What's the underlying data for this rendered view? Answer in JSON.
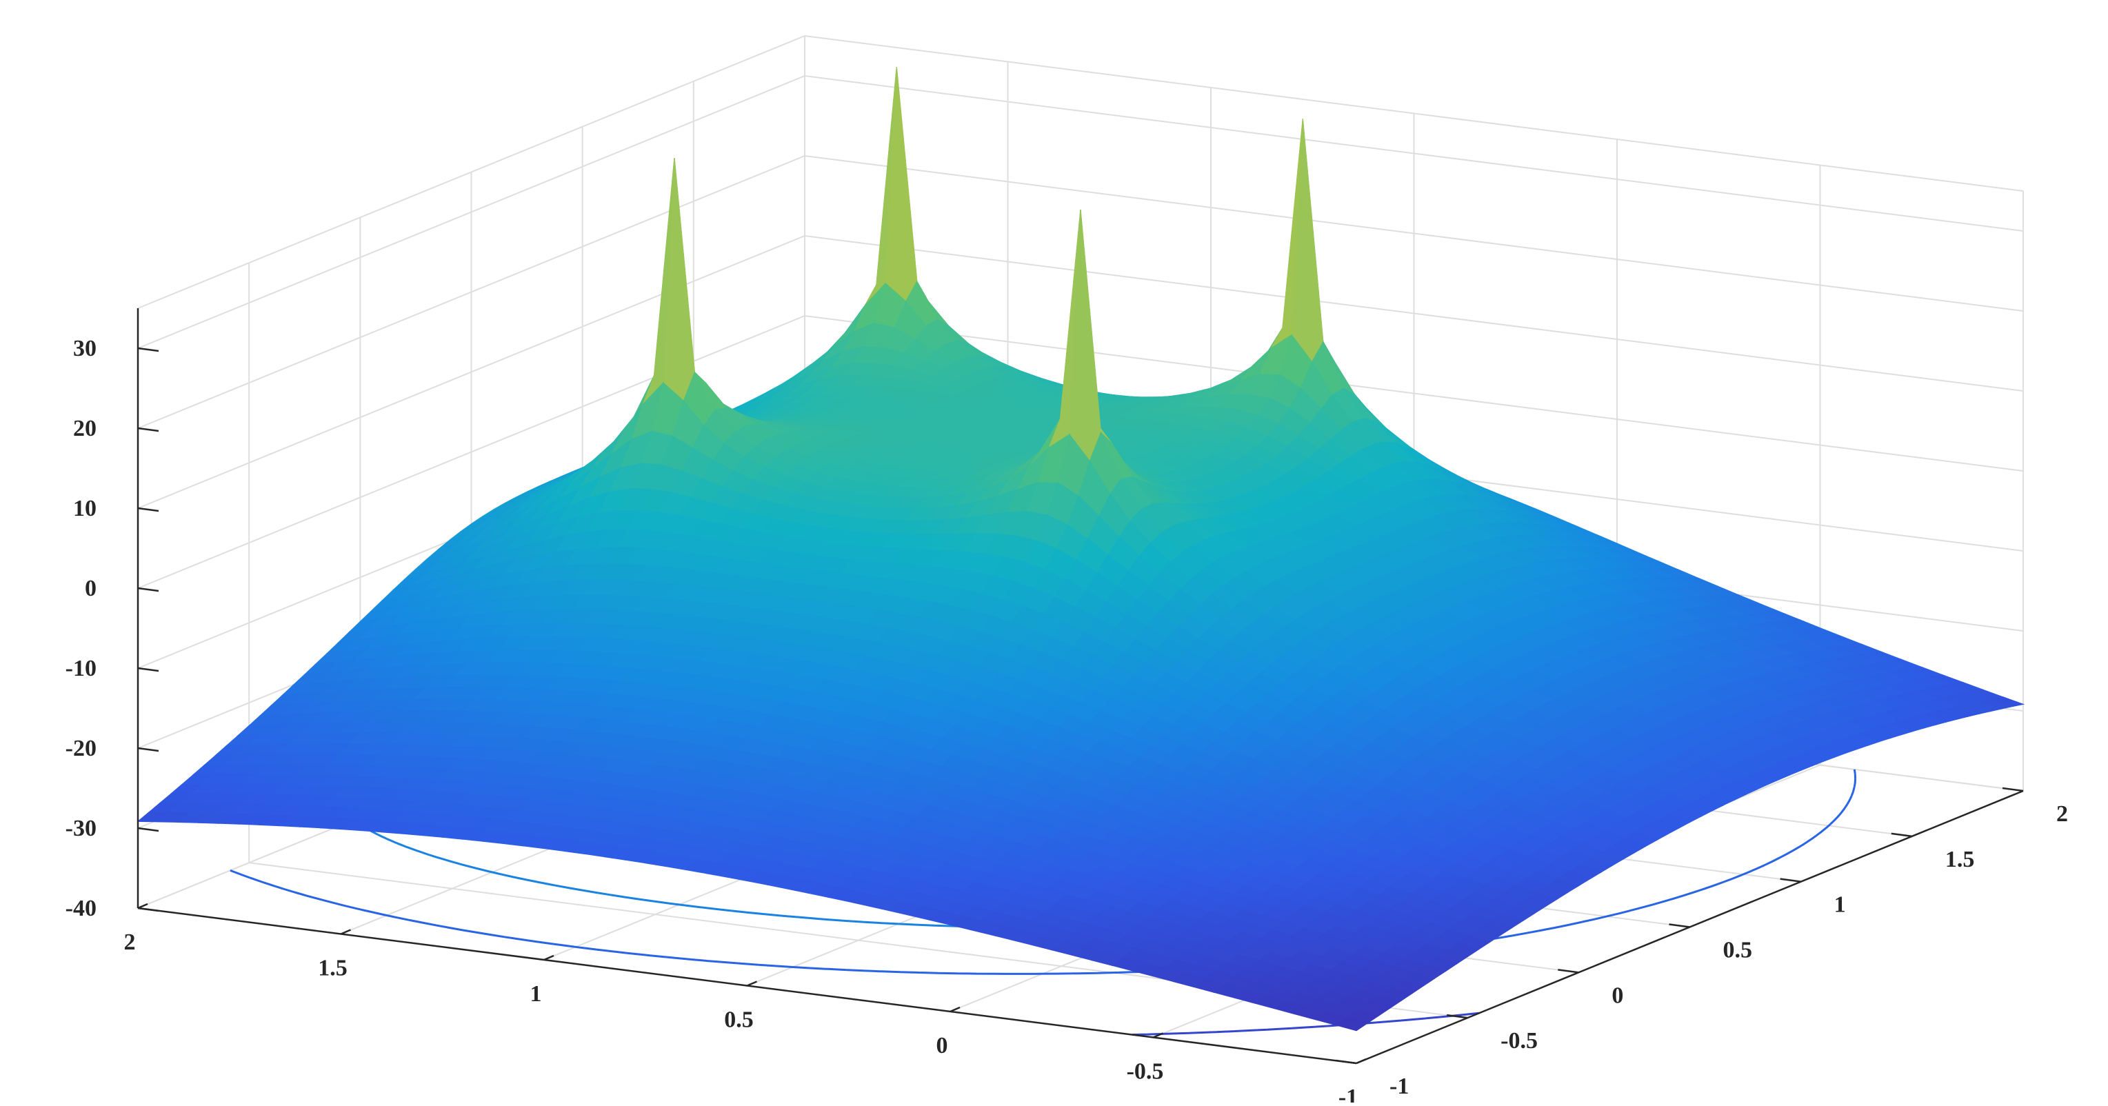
{
  "chart_data": {
    "type": "surface",
    "title": "",
    "xlabel": "",
    "ylabel": "",
    "zlabel": "",
    "grid": true,
    "legend": "none",
    "colormap": "parula",
    "contour_on_floor": true,
    "xlim": [
      -1,
      2
    ],
    "ylim": [
      -1,
      2
    ],
    "zlim": [
      -40,
      35
    ],
    "x_ticks": [
      "2",
      "1.5",
      "1",
      "0.5",
      "0",
      "-0.5",
      "-1"
    ],
    "y_ticks": [
      "-1",
      "-0.5",
      "0",
      "0.5",
      "1",
      "1.5",
      "2"
    ],
    "z_ticks": [
      "30",
      "20",
      "10",
      "0",
      "-10",
      "-20",
      "-30",
      "-40"
    ],
    "x_tick_values": [
      2,
      1.5,
      1,
      0.5,
      0,
      -0.5,
      -1
    ],
    "y_tick_values": [
      -1,
      -0.5,
      0,
      0.5,
      1,
      1.5,
      2
    ],
    "z_tick_values": [
      30,
      20,
      10,
      0,
      -10,
      -20,
      -30,
      -40
    ],
    "peaks": [
      {
        "x": 0.5,
        "y": 1.5,
        "z": 40
      },
      {
        "x": 1.5,
        "y": 1.5,
        "z": 40
      },
      {
        "x": 0.5,
        "y": 0.5,
        "z": 40
      },
      {
        "x": 1.5,
        "y": 0.5,
        "z": 40
      }
    ],
    "corner_values": [
      {
        "x": -1,
        "y": -1,
        "z": -40
      },
      {
        "x": 2,
        "y": -1,
        "z": -30
      },
      {
        "x": -1,
        "y": 2,
        "z": -27
      },
      {
        "x": 2,
        "y": 2,
        "z": -34
      }
    ],
    "colors": {
      "low": "#3e26a8",
      "mid_low": "#1f7ee8",
      "mid": "#12b2c2",
      "mid_high": "#6fc56a",
      "high": "#f9e41f",
      "grid": "#dedede",
      "axis": "#262626"
    }
  }
}
